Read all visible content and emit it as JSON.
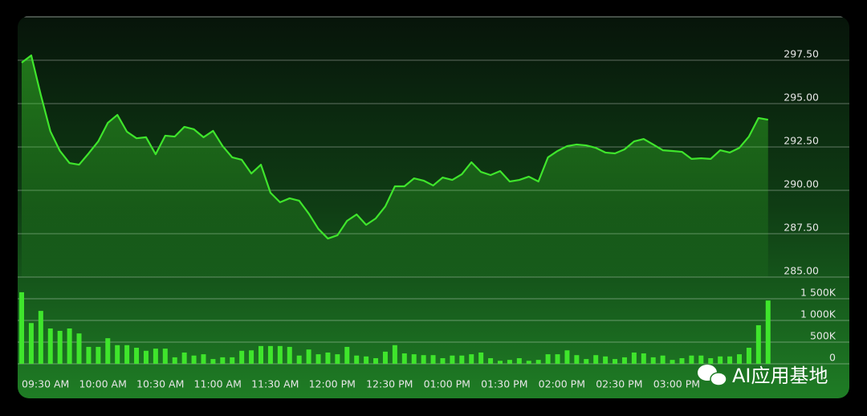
{
  "chart_data": [
    {
      "type": "line",
      "color": "#3fe52c",
      "grid": true,
      "values": [
        297.36,
        297.78,
        295.5,
        293.4,
        292.27,
        291.57,
        291.48,
        292.13,
        292.82,
        293.89,
        294.35,
        293.38,
        293.0,
        293.06,
        292.08,
        293.15,
        293.1,
        293.66,
        293.52,
        293.06,
        293.43,
        292.55,
        291.9,
        291.76,
        290.97,
        291.48,
        289.86,
        289.31,
        289.54,
        289.4,
        288.66,
        287.78,
        287.22,
        287.41,
        288.24,
        288.61,
        288.01,
        288.38,
        289.07,
        290.23,
        290.23,
        290.69,
        290.56,
        290.28,
        290.74,
        290.6,
        290.93,
        291.62,
        291.06,
        290.88,
        291.11,
        290.51,
        290.6,
        290.79,
        290.51,
        291.9,
        292.27,
        292.55,
        292.64,
        292.59,
        292.45,
        292.18,
        292.13,
        292.36,
        292.82,
        292.96,
        292.64,
        292.31,
        292.27,
        292.22,
        291.81,
        291.85,
        291.81,
        292.31,
        292.18,
        292.45,
        293.1,
        294.17,
        294.07
      ],
      "ylim": [
        285,
        300
      ],
      "yticks": [
        {
          "value": 285,
          "label": "285.00"
        },
        {
          "value": 287.5,
          "label": "287.50"
        },
        {
          "value": 290,
          "label": "290.00"
        },
        {
          "value": 292.5,
          "label": "292.50"
        },
        {
          "value": 295,
          "label": "295.00"
        },
        {
          "value": 297.5,
          "label": "297.50"
        }
      ]
    },
    {
      "type": "bar",
      "color": "#3fe52c",
      "grid": true,
      "categories": [
        "09:30 AM",
        null,
        null,
        null,
        null,
        null,
        "10:00 AM",
        null,
        null,
        null,
        null,
        null,
        "10:30 AM",
        null,
        null,
        null,
        null,
        null,
        "11:00 AM",
        null,
        null,
        null,
        null,
        null,
        "11:30 AM",
        null,
        null,
        null,
        null,
        null,
        "12:00 PM",
        null,
        null,
        null,
        null,
        null,
        "12:30 PM",
        null,
        null,
        null,
        null,
        null,
        "01:00 PM",
        null,
        null,
        null,
        null,
        null,
        "01:30 PM",
        null,
        null,
        null,
        null,
        null,
        "02:00 PM",
        null,
        null,
        null,
        null,
        null,
        "02:30 PM",
        null,
        null,
        null,
        null,
        null,
        "03:00 PM",
        null,
        null,
        null,
        null,
        null,
        null,
        null,
        null,
        null,
        null,
        null,
        null
      ],
      "values": [
        1650000,
        940000,
        1220000,
        815000,
        760000,
        815000,
        700000,
        390000,
        390000,
        590000,
        430000,
        430000,
        370000,
        300000,
        350000,
        350000,
        150000,
        260000,
        190000,
        220000,
        110000,
        150000,
        150000,
        300000,
        310000,
        410000,
        410000,
        410000,
        390000,
        190000,
        330000,
        220000,
        260000,
        220000,
        390000,
        190000,
        170000,
        130000,
        280000,
        430000,
        240000,
        220000,
        200000,
        200000,
        130000,
        190000,
        190000,
        220000,
        260000,
        130000,
        70000,
        90000,
        130000,
        70000,
        90000,
        220000,
        220000,
        310000,
        200000,
        110000,
        200000,
        170000,
        110000,
        150000,
        260000,
        240000,
        150000,
        190000,
        90000,
        130000,
        190000,
        190000,
        130000,
        170000,
        170000,
        220000,
        370000,
        890000,
        1460000
      ],
      "ylim": [
        0,
        2000000
      ],
      "yticks": [
        0,
        {
          "value": 500000,
          "label": "500K"
        },
        {
          "value": 1000000,
          "label": "1 000K"
        },
        {
          "value": 1500000,
          "label": "1 500K"
        }
      ]
    }
  ],
  "watermark": "AI应用基地"
}
